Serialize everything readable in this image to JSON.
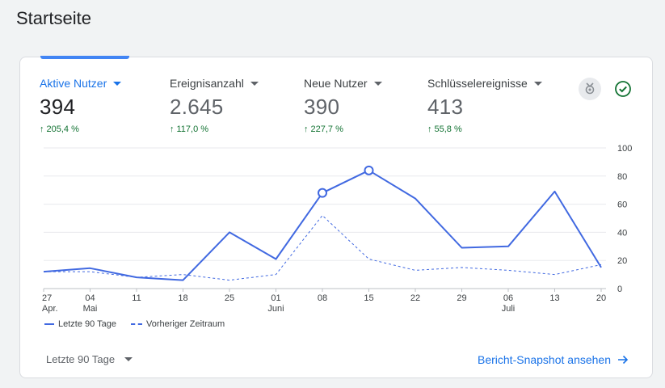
{
  "page": {
    "title": "Startseite"
  },
  "metrics": [
    {
      "label": "Aktive Nutzer",
      "value": "394",
      "change": "205,4 %"
    },
    {
      "label": "Ereignisanzahl",
      "value": "2.645",
      "change": "117,0 %"
    },
    {
      "label": "Neue Nutzer",
      "value": "390",
      "change": "227,7 %"
    },
    {
      "label": "Schlüsselereignisse",
      "value": "413",
      "change": "55,8 %"
    }
  ],
  "icons": {
    "insights": "insights-icon",
    "status": "check-circle-icon",
    "trend": "arrow-up-icon",
    "link": "arrow-right-icon"
  },
  "colors": {
    "accent": "#1a73e8",
    "series": "#4169e1",
    "positive": "#137333"
  },
  "chart_data": {
    "type": "line",
    "x_ticks": [
      {
        "day": "27",
        "month": "Apr."
      },
      {
        "day": "04",
        "month": "Mai"
      },
      {
        "day": "11",
        "month": ""
      },
      {
        "day": "18",
        "month": ""
      },
      {
        "day": "25",
        "month": ""
      },
      {
        "day": "01",
        "month": "Juni"
      },
      {
        "day": "08",
        "month": ""
      },
      {
        "day": "15",
        "month": ""
      },
      {
        "day": "22",
        "month": ""
      },
      {
        "day": "29",
        "month": ""
      },
      {
        "day": "06",
        "month": "Juli"
      },
      {
        "day": "13",
        "month": ""
      },
      {
        "day": "20",
        "month": ""
      }
    ],
    "y_ticks": [
      "0",
      "20",
      "40",
      "60",
      "80",
      "100"
    ],
    "ylim": [
      0,
      100
    ],
    "series": [
      {
        "name": "Letzte 90 Tage",
        "style": "solid",
        "values": [
          12,
          14.5,
          8,
          6,
          40,
          21,
          68,
          84,
          64,
          29,
          30,
          69,
          15
        ],
        "marked_points": [
          6,
          7
        ]
      },
      {
        "name": "Vorheriger Zeitraum",
        "style": "dashed",
        "values": [
          12,
          12,
          8,
          10,
          6,
          10,
          52,
          21,
          13,
          15,
          13,
          10,
          17
        ]
      }
    ],
    "legend_position": "bottom-left",
    "grid": true
  },
  "footer": {
    "range_label": "Letzte 90 Tage",
    "snapshot_link": "Bericht-Snapshot ansehen"
  }
}
